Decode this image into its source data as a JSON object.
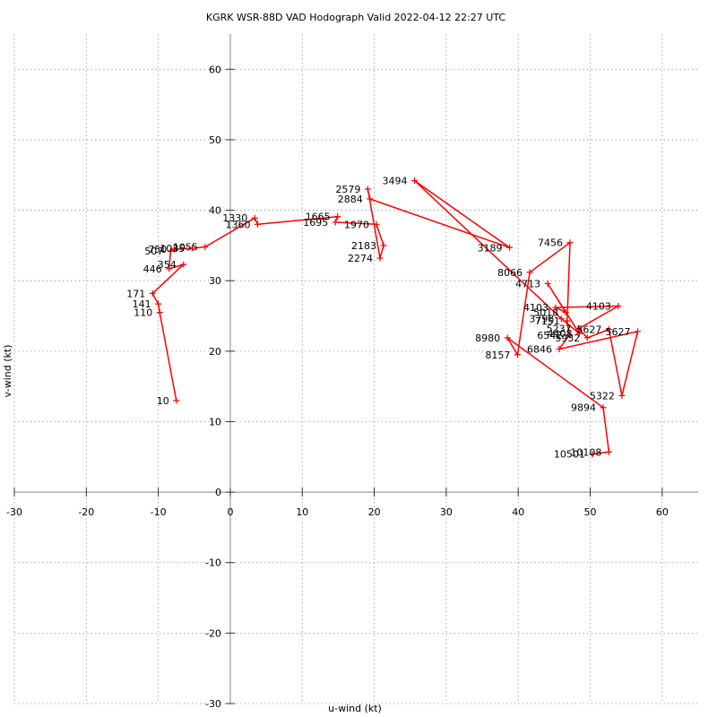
{
  "chart_data": {
    "type": "line",
    "title": "KGRK WSR-88D VAD Hodograph Valid 2022-04-12 22:27 UTC",
    "xlabel": "u-wind (kt)",
    "ylabel": "v-wind (kt)",
    "xlim": [
      -30,
      65
    ],
    "ylim": [
      -30,
      65
    ],
    "grid": true,
    "grid_style": "dotted",
    "xticks": [
      -30,
      -20,
      -10,
      0,
      10,
      20,
      30,
      40,
      50,
      60
    ],
    "yticks": [
      -30,
      -20,
      -10,
      0,
      10,
      20,
      30,
      40,
      50,
      60
    ],
    "line_color": "#ff0000",
    "series": [
      {
        "points": [
          {
            "u": -7.5,
            "v": 13.0,
            "label": "10"
          },
          {
            "u": -9.8,
            "v": 25.5,
            "label": "110"
          },
          {
            "u": -10.0,
            "v": 26.7,
            "label": "141"
          },
          {
            "u": -10.8,
            "v": 28.2,
            "label": "171"
          },
          {
            "u": -6.5,
            "v": 32.3,
            "label": "354"
          },
          {
            "u": -8.5,
            "v": 31.7,
            "label": "446"
          },
          {
            "u": -8.3,
            "v": 34.2,
            "label": "507"
          },
          {
            "u": -7.8,
            "v": 34.5,
            "label": "750"
          },
          {
            "u": -5.3,
            "v": 34.6,
            "label": "1035"
          },
          {
            "u": -3.5,
            "v": 34.8,
            "label": "1055"
          },
          {
            "u": 3.4,
            "v": 38.9,
            "label": "1330"
          },
          {
            "u": 3.8,
            "v": 38.0,
            "label": "1360"
          },
          {
            "u": 14.9,
            "v": 39.1,
            "label": "1665"
          },
          {
            "u": 14.6,
            "v": 38.3,
            "label": "1695"
          },
          {
            "u": 20.3,
            "v": 38.0,
            "label": "1970"
          },
          {
            "u": 21.3,
            "v": 35.0,
            "label": "2183"
          },
          {
            "u": 20.8,
            "v": 33.2,
            "label": "2274"
          },
          {
            "u": 19.1,
            "v": 43.0,
            "label": "2579"
          },
          {
            "u": 19.4,
            "v": 41.6,
            "label": "2884"
          },
          {
            "u": 38.8,
            "v": 34.7,
            "label": "3189"
          },
          {
            "u": 25.6,
            "v": 44.2,
            "label": "3494"
          },
          {
            "u": 46.0,
            "v": 24.6,
            "label": "3798"
          },
          {
            "u": 48.5,
            "v": 22.5,
            "label": "4408"
          },
          {
            "u": 44.1,
            "v": 29.6,
            "label": "4713"
          },
          {
            "u": 46.6,
            "v": 25.5,
            "label": "5018"
          },
          {
            "u": 45.2,
            "v": 26.2,
            "label": "4103"
          },
          {
            "u": 53.9,
            "v": 26.4,
            "label": "4103"
          },
          {
            "u": 48.4,
            "v": 23.2,
            "label": "5237"
          },
          {
            "u": 49.6,
            "v": 21.9,
            "label": "5932"
          },
          {
            "u": 52.6,
            "v": 23.1,
            "label": "5627"
          },
          {
            "u": 54.4,
            "v": 13.7,
            "label": "5322"
          },
          {
            "u": 56.6,
            "v": 22.8,
            "label": "5627"
          },
          {
            "u": 45.7,
            "v": 20.3,
            "label": "6846"
          },
          {
            "u": 47.1,
            "v": 22.3,
            "label": "6542"
          },
          {
            "u": 46.8,
            "v": 24.3,
            "label": "7151"
          },
          {
            "u": 47.2,
            "v": 35.4,
            "label": "7456"
          },
          {
            "u": 41.6,
            "v": 31.2,
            "label": "8066"
          },
          {
            "u": 39.9,
            "v": 19.5,
            "label": "8157"
          },
          {
            "u": 38.5,
            "v": 21.9,
            "label": "8980"
          },
          {
            "u": 51.8,
            "v": 12.0,
            "label": "9894"
          },
          {
            "u": 52.6,
            "v": 5.7,
            "label": "10108"
          },
          {
            "u": 50.3,
            "v": 5.4,
            "label": "10501"
          }
        ]
      }
    ]
  }
}
